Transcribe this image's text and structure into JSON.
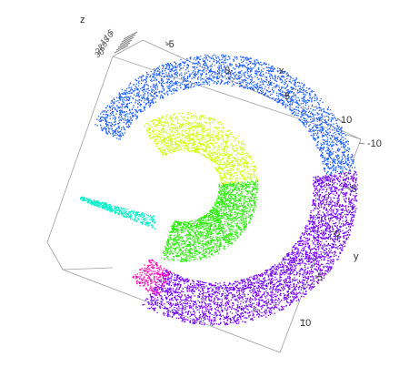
{
  "chart_data": {
    "type": "scatter",
    "projection": "3d",
    "title": "",
    "axes": {
      "x": {
        "label": "x",
        "ticks": [
          "-5",
          "0",
          "5",
          "10"
        ]
      },
      "y": {
        "label": "y",
        "ticks": [
          "-10",
          "-5",
          "0",
          "5",
          "10"
        ]
      },
      "z": {
        "label": "z",
        "ticks": [
          "5",
          "10",
          "15",
          "20",
          "25",
          "30"
        ]
      }
    },
    "grid": false,
    "legend": "none",
    "series": [
      {
        "color": "#1f5fff",
        "z_range": [
          26,
          30
        ],
        "theta_range_deg": [
          -160,
          -20
        ],
        "description_of_region": "outer arc upper"
      },
      {
        "color": "#7000ff",
        "z_range": [
          5,
          12
        ],
        "theta_range_deg": [
          -20,
          120
        ]
      },
      {
        "color": "#ff00b4",
        "z_range": [
          1,
          5
        ],
        "theta_range_deg": [
          120,
          135
        ]
      },
      {
        "color": "#ccff00",
        "z_range": [
          20,
          24
        ],
        "theta_range_deg": [
          185,
          350
        ]
      },
      {
        "color": "#22ee00",
        "z_range": [
          14,
          20
        ],
        "theta_range_deg": [
          0,
          140
        ]
      },
      {
        "color": "#00f0c8",
        "z_range": [
          12,
          14
        ],
        "theta_range_deg": [
          140,
          175
        ]
      }
    ]
  }
}
